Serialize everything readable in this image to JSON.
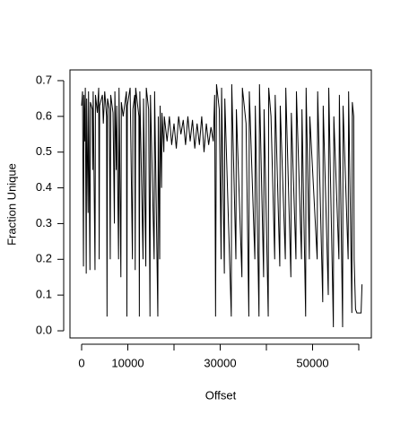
{
  "chart_data": {
    "type": "line",
    "xlabel": "Offset",
    "ylabel": "Fraction Unique",
    "x": [
      0,
      200,
      400,
      500,
      700,
      800,
      1000,
      1100,
      1400,
      1500,
      1800,
      1900,
      2300,
      2400,
      2500,
      2900,
      3000,
      3400,
      3700,
      3800,
      3900,
      4500,
      4700,
      5000,
      5400,
      5500,
      5600,
      6000,
      6200,
      6300,
      6800,
      7100,
      7200,
      7500,
      7600,
      8000,
      8100,
      8500,
      8600,
      9000,
      9700,
      9800,
      9900,
      10500,
      11000,
      11100,
      11500,
      11600,
      11700,
      12400,
      12500,
      12600,
      13300,
      13400,
      13900,
      14000,
      14500,
      14800,
      14900,
      15700,
      15800,
      16500,
      16600,
      16900,
      17000,
      17300,
      17400,
      17800,
      17900,
      18500,
      19000,
      19500,
      20000,
      20500,
      21000,
      21500,
      22000,
      22500,
      23000,
      23500,
      24000,
      24500,
      25000,
      25500,
      26000,
      26500,
      27000,
      27500,
      28000,
      28500,
      28800,
      29000,
      29200,
      29800,
      30200,
      30300,
      30900,
      31000,
      32400,
      32500,
      33400,
      33500,
      34700,
      34800,
      35600,
      36200,
      36300,
      37500,
      37600,
      38400,
      38500,
      39400,
      39500,
      40400,
      40500,
      41000,
      41800,
      41900,
      42900,
      43000,
      44100,
      44200,
      45300,
      45400,
      46400,
      46500,
      47600,
      47700,
      48500,
      48600,
      49300,
      49400,
      51000,
      51100,
      52200,
      52300,
      53400,
      53500,
      54500,
      54600,
      55700,
      55800,
      56500,
      56600,
      57700,
      57800,
      58500,
      58600,
      58900,
      59000,
      59300,
      59600,
      60500,
      60700
    ],
    "values": [
      0.63,
      0.67,
      0.18,
      0.66,
      0.53,
      0.68,
      0.16,
      0.65,
      0.33,
      0.67,
      0.17,
      0.64,
      0.62,
      0.45,
      0.67,
      0.17,
      0.66,
      0.61,
      0.68,
      0.2,
      0.63,
      0.66,
      0.58,
      0.67,
      0.6,
      0.04,
      0.65,
      0.62,
      0.2,
      0.66,
      0.61,
      0.3,
      0.67,
      0.45,
      0.63,
      0.2,
      0.68,
      0.15,
      0.64,
      0.6,
      0.67,
      0.04,
      0.63,
      0.68,
      0.2,
      0.62,
      0.66,
      0.17,
      0.68,
      0.6,
      0.04,
      0.67,
      0.2,
      0.65,
      0.18,
      0.68,
      0.62,
      0.04,
      0.66,
      0.2,
      0.67,
      0.04,
      0.6,
      0.2,
      0.63,
      0.4,
      0.61,
      0.5,
      0.6,
      0.53,
      0.6,
      0.52,
      0.58,
      0.51,
      0.6,
      0.55,
      0.59,
      0.52,
      0.6,
      0.53,
      0.59,
      0.51,
      0.58,
      0.52,
      0.6,
      0.5,
      0.58,
      0.52,
      0.57,
      0.53,
      0.66,
      0.04,
      0.69,
      0.62,
      0.2,
      0.68,
      0.16,
      0.65,
      0.04,
      0.69,
      0.2,
      0.62,
      0.15,
      0.68,
      0.58,
      0.04,
      0.67,
      0.2,
      0.63,
      0.04,
      0.69,
      0.15,
      0.62,
      0.04,
      0.68,
      0.6,
      0.2,
      0.66,
      0.18,
      0.63,
      0.2,
      0.68,
      0.15,
      0.61,
      0.2,
      0.67,
      0.2,
      0.62,
      0.04,
      0.68,
      0.2,
      0.6,
      0.2,
      0.67,
      0.08,
      0.63,
      0.1,
      0.68,
      0.01,
      0.6,
      0.2,
      0.66,
      0.01,
      0.63,
      0.2,
      0.67,
      0.05,
      0.64,
      0.6,
      0.2,
      0.06,
      0.05,
      0.05,
      0.13
    ],
    "color": "#000000",
    "xlim": [
      -2524,
      62718
    ],
    "ylim": [
      -0.02,
      0.73
    ],
    "xticks": [
      0,
      10000,
      {
        "value": 20000,
        "label": null
      },
      30000,
      {
        "value": 40000,
        "label": null
      },
      50000,
      {
        "value": 60000,
        "label": null
      }
    ],
    "yticks": [
      {
        "value": 0,
        "label": "0.0"
      },
      0.1,
      0.2,
      0.3,
      0.4,
      0.5,
      0.6,
      0.7
    ]
  }
}
